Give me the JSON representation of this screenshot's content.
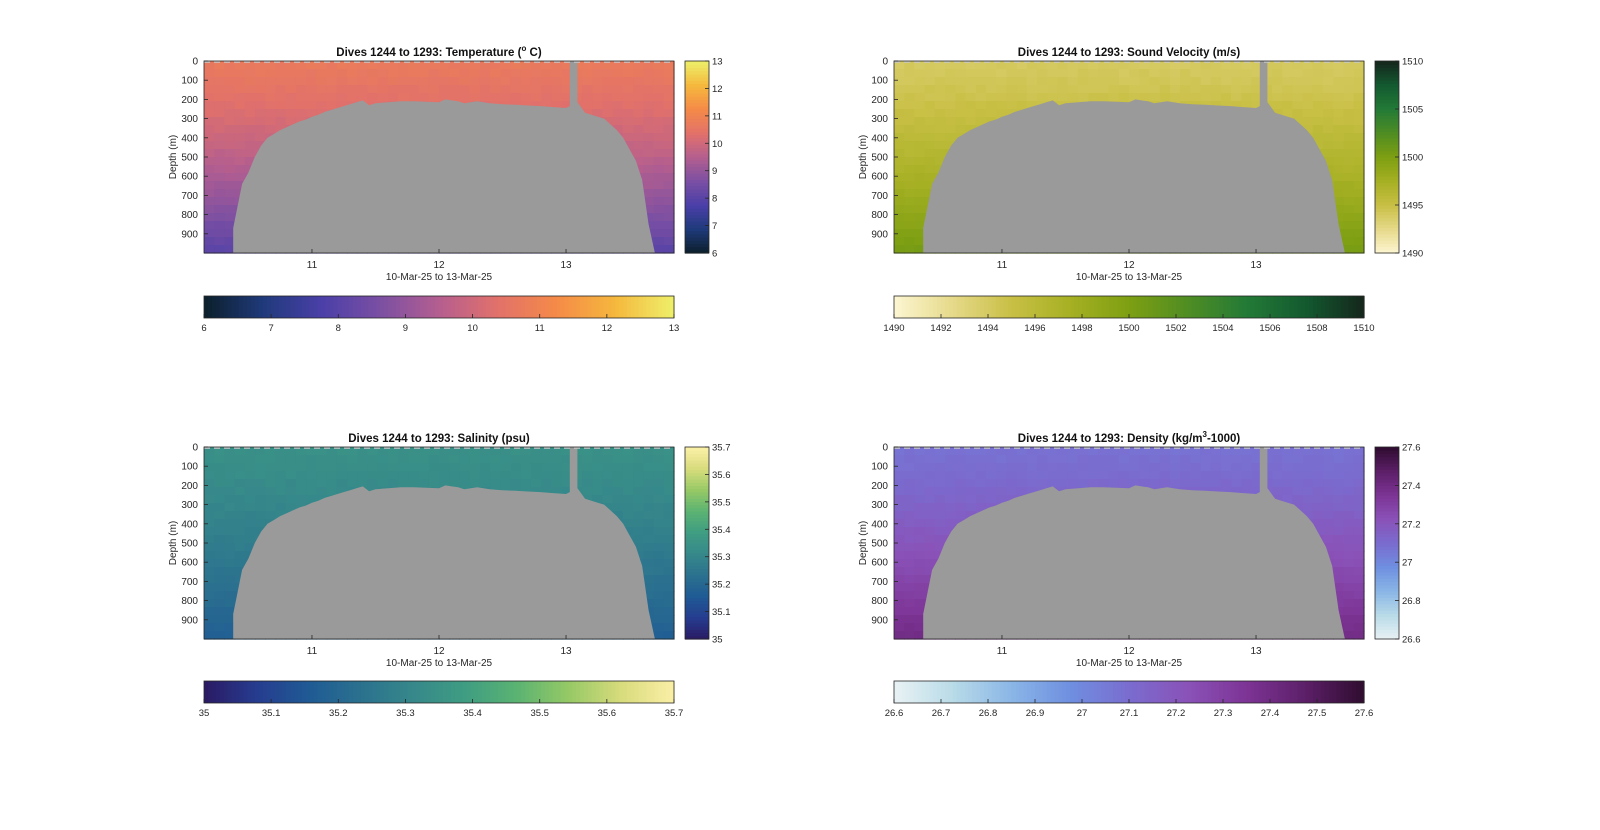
{
  "figure": {
    "background_color": "#ffffff",
    "mask_color": "#9a9a9a",
    "axis_color": "#262626"
  },
  "chart_data": [
    {
      "type": "heatmap",
      "variable": "temperature",
      "title": {
        "pre": "Dives 1244 to 1293: Temperature (",
        "sup": "o",
        "post": " C)"
      },
      "xlabel": "10-Mar-25 to 13-Mar-25",
      "ylabel": "Depth (m)",
      "xlim": [
        10.15,
        13.85
      ],
      "ylim": [
        0,
        1000
      ],
      "xticks": [
        11,
        12,
        13
      ],
      "yticks": [
        0,
        100,
        200,
        300,
        400,
        500,
        600,
        700,
        800,
        900
      ],
      "side_colorbar": {
        "ticks": [
          6,
          7,
          8,
          9,
          10,
          11,
          12,
          13
        ],
        "clim": [
          6,
          13
        ]
      },
      "bottom_colorbar": {
        "ticks": [
          6,
          7,
          8,
          9,
          10,
          11,
          12,
          13
        ],
        "clim": [
          6,
          13
        ]
      },
      "colormap": [
        "#0b1f2a",
        "#1f3a7a",
        "#4a3fa8",
        "#7b4fa3",
        "#b45e8f",
        "#e2716a",
        "#f58a48",
        "#f5b83d",
        "#eef06a"
      ],
      "surface_value": 10.7,
      "deep_value": 8.0,
      "gap_band": [
        13.03,
        13.09
      ]
    },
    {
      "type": "heatmap",
      "variable": "sound_velocity",
      "title": {
        "pre": "Dives 1244 to 1293: Sound Velocity (m/s)",
        "sup": "",
        "post": ""
      },
      "xlabel": "10-Mar-25 to 13-Mar-25",
      "ylabel": "Depth (m)",
      "xlim": [
        10.15,
        13.85
      ],
      "ylim": [
        0,
        1000
      ],
      "xticks": [
        11,
        12,
        13
      ],
      "yticks": [
        0,
        100,
        200,
        300,
        400,
        500,
        600,
        700,
        800,
        900
      ],
      "side_colorbar": {
        "ticks": [
          1490,
          1495,
          1500,
          1505,
          1510
        ],
        "clim": [
          1490,
          1510
        ]
      },
      "bottom_colorbar": {
        "ticks": [
          1490,
          1492,
          1494,
          1496,
          1498,
          1500,
          1502,
          1504,
          1506,
          1508,
          1510
        ],
        "clim": [
          1490,
          1510
        ]
      },
      "colormap": [
        "#fcf6d2",
        "#e6d98a",
        "#c8bf45",
        "#a6b023",
        "#7e9f12",
        "#4f8d23",
        "#237a36",
        "#135a30",
        "#15261c"
      ],
      "surface_value": 1494.0,
      "deep_value": 1500.5,
      "gap_band": [
        13.03,
        13.09
      ]
    },
    {
      "type": "heatmap",
      "variable": "salinity",
      "title": {
        "pre": "Dives 1244 to 1293: Salinity (psu)",
        "sup": "",
        "post": ""
      },
      "xlabel": "10-Mar-25 to 13-Mar-25",
      "ylabel": "Depth (m)",
      "xlim": [
        10.15,
        13.85
      ],
      "ylim": [
        0,
        1000
      ],
      "xticks": [
        11,
        12,
        13
      ],
      "yticks": [
        0,
        100,
        200,
        300,
        400,
        500,
        600,
        700,
        800,
        900
      ],
      "side_colorbar": {
        "ticks": [
          35,
          35.1,
          35.2,
          35.3,
          35.4,
          35.5,
          35.6,
          35.7
        ],
        "clim": [
          35,
          35.7
        ]
      },
      "bottom_colorbar": {
        "ticks": [
          35,
          35.1,
          35.2,
          35.3,
          35.4,
          35.5,
          35.6,
          35.7
        ],
        "clim": [
          35,
          35.7
        ]
      },
      "colormap": [
        "#2a1a63",
        "#263c8f",
        "#1f5a94",
        "#2b718f",
        "#36888a",
        "#3f9d82",
        "#5bb372",
        "#97c966",
        "#d8dc7c",
        "#fbefa7"
      ],
      "surface_value": 35.34,
      "deep_value": 35.17,
      "gap_band": [
        13.03,
        13.09
      ]
    },
    {
      "type": "heatmap",
      "variable": "density",
      "title": {
        "pre": "Dives 1244 to 1293: Density (kg/m",
        "sup": "3",
        "post": "-1000)"
      },
      "xlabel": "10-Mar-25 to 13-Mar-25",
      "ylabel": "Depth (m)",
      "xlim": [
        10.15,
        13.85
      ],
      "ylim": [
        0,
        1000
      ],
      "xticks": [
        11,
        12,
        13
      ],
      "yticks": [
        0,
        100,
        200,
        300,
        400,
        500,
        600,
        700,
        800,
        900
      ],
      "side_colorbar": {
        "ticks": [
          26.6,
          26.8,
          27,
          27.2,
          27.4,
          27.6
        ],
        "clim": [
          26.6,
          27.6
        ]
      },
      "bottom_colorbar": {
        "ticks": [
          26.6,
          26.7,
          26.8,
          26.9,
          27,
          27.1,
          27.2,
          27.3,
          27.4,
          27.5,
          27.6
        ],
        "clim": [
          26.6,
          27.6
        ]
      },
      "colormap": [
        "#e9f2f4",
        "#b9dbe8",
        "#8ab6e6",
        "#6f8fe0",
        "#7a6ccf",
        "#8a52b8",
        "#7d3495",
        "#5c1f68",
        "#2f0c2f"
      ],
      "surface_value": 27.08,
      "deep_value": 27.4,
      "gap_band": [
        13.03,
        13.09
      ]
    }
  ],
  "bottom_profile": {
    "x": [
      10.15,
      10.38,
      10.38,
      10.45,
      10.5,
      10.55,
      10.6,
      10.65,
      10.7,
      10.75,
      10.8,
      10.85,
      10.9,
      10.95,
      11.0,
      11.05,
      11.1,
      11.15,
      11.2,
      11.25,
      11.3,
      11.35,
      11.4,
      11.45,
      11.5,
      11.6,
      11.7,
      11.8,
      11.9,
      12.0,
      12.05,
      12.1,
      12.15,
      12.2,
      12.3,
      12.4,
      12.5,
      12.6,
      12.7,
      12.8,
      12.9,
      13.0,
      13.09,
      13.15,
      13.2,
      13.25,
      13.3,
      13.35,
      13.4,
      13.45,
      13.5,
      13.55,
      13.6,
      13.65,
      13.7,
      13.85
    ],
    "depth": [
      1000,
      1000,
      870,
      640,
      580,
      500,
      440,
      400,
      380,
      360,
      345,
      330,
      315,
      305,
      290,
      280,
      265,
      255,
      245,
      235,
      225,
      215,
      205,
      230,
      220,
      215,
      210,
      210,
      212,
      215,
      200,
      205,
      210,
      220,
      210,
      220,
      225,
      228,
      232,
      235,
      240,
      245,
      215,
      270,
      280,
      290,
      300,
      330,
      360,
      400,
      460,
      520,
      620,
      850,
      1000,
      1000
    ]
  }
}
